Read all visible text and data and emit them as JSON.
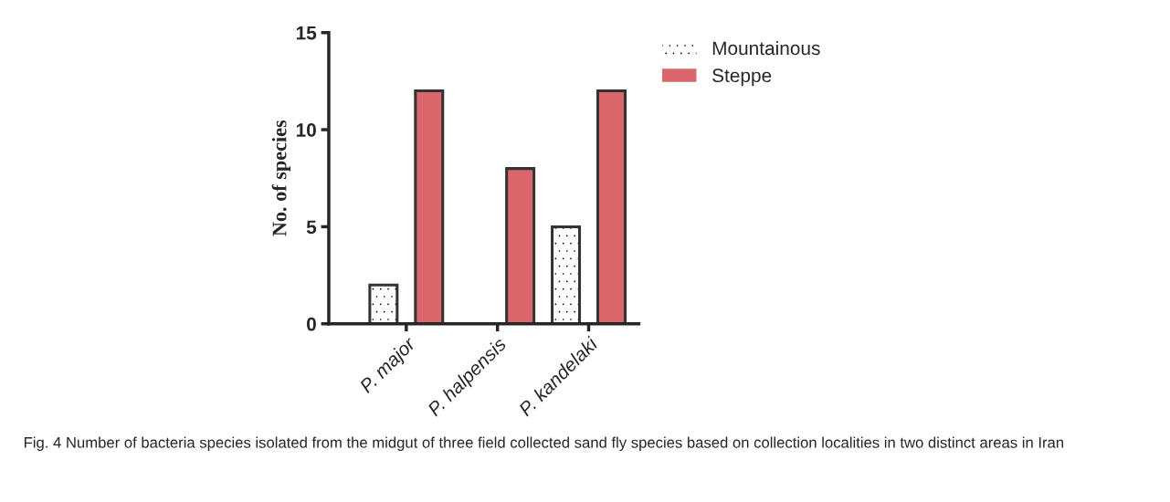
{
  "chart_data": {
    "type": "bar",
    "ylabel": "No. of species",
    "categories": [
      "P. major",
      "P. halpensis",
      "P. kandelaki"
    ],
    "series": [
      {
        "name": "Mountainous",
        "color": "#ffffff",
        "values": [
          2,
          0,
          5
        ]
      },
      {
        "name": "Steppe",
        "color": "#d9676b",
        "values": [
          12,
          8,
          12
        ]
      }
    ],
    "ylim": [
      0,
      15
    ],
    "yticks": [
      0,
      5,
      10,
      15
    ],
    "grid": false,
    "legend": "top right",
    "annotations": [
      "Fig. 4 Number of bacteria species isolated from the midgut of three field collected sand fly species based on collection localities in two distinct areas in Iran"
    ]
  }
}
